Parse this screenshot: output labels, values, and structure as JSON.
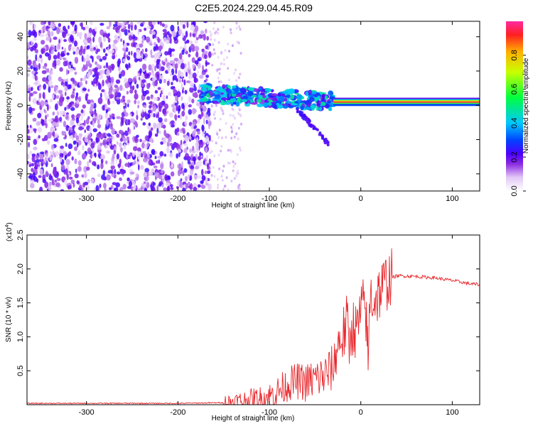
{
  "title": "C2E5.2024.229.04.45.R09",
  "chart_data": [
    {
      "type": "heatmap",
      "xlabel": "Height of straight line (km)",
      "ylabel": "Frequency (Hz)",
      "xlim": [
        -365,
        130
      ],
      "ylim": [
        -50,
        49
      ],
      "xticks": [
        -300,
        -200,
        -100,
        0,
        100
      ],
      "yticks": [
        -40,
        -20,
        0,
        20,
        40
      ],
      "colorbar": {
        "label": "Normalized spectral amplitude",
        "range": [
          0,
          1
        ],
        "ticks": [
          0.0,
          0.2,
          0.4,
          0.6,
          0.8
        ],
        "tick_labels": [
          "0.0",
          "0.2",
          "0.4",
          "0.6",
          "0.8"
        ]
      },
      "features": [
        {
          "desc": "scattered noise",
          "x": [
            -365,
            -165
          ],
          "y": [
            -50,
            49
          ],
          "amplitude": 0.12
        },
        {
          "desc": "echo band",
          "x": [
            -175,
            -30
          ],
          "center_y": [
            7,
            2
          ],
          "amplitude": 0.3
        },
        {
          "desc": "descending trace",
          "x": [
            -70,
            -35
          ],
          "y_from": -2,
          "y_to": -23,
          "amplitude": 0.2
        },
        {
          "desc": "steady tone",
          "x": [
            -30,
            130
          ],
          "y": 2,
          "amplitude": 0.95
        }
      ]
    },
    {
      "type": "line",
      "xlabel": "Height of straight line (km)",
      "ylabel": "SNR (10 * v/v)",
      "multiplier": "(x10",
      "multiplier_exp": "4",
      "xlim": [
        -365,
        130
      ],
      "ylim": [
        0,
        2.5
      ],
      "xticks": [
        -300,
        -200,
        -100,
        0,
        100
      ],
      "yticks": [
        0.5,
        1.0,
        1.5,
        2.0,
        2.5
      ],
      "ytick_labels": [
        "0.5",
        "1.0",
        "1.5",
        "2.0",
        "2.5"
      ],
      "series": [
        {
          "color": "#e8282d",
          "x": [
            -365,
            -300,
            -200,
            -150,
            -130,
            -110,
            -100,
            -90,
            -80,
            -70,
            -60,
            -50,
            -40,
            -30,
            -25,
            -20,
            -15,
            -12,
            -10,
            -5,
            0,
            5,
            8,
            10,
            15,
            20,
            30,
            40,
            60,
            80,
            100,
            120,
            130
          ],
          "y": [
            0.02,
            0.02,
            0.02,
            0.03,
            0.05,
            0.08,
            0.12,
            0.2,
            0.3,
            0.35,
            0.32,
            0.38,
            0.42,
            0.55,
            0.9,
            1.0,
            1.2,
            0.85,
            1.2,
            1.05,
            1.35,
            1.5,
            0.6,
            1.6,
            1.55,
            1.65,
            1.85,
            1.9,
            1.89,
            1.87,
            1.83,
            1.78,
            1.77
          ]
        }
      ]
    }
  ]
}
